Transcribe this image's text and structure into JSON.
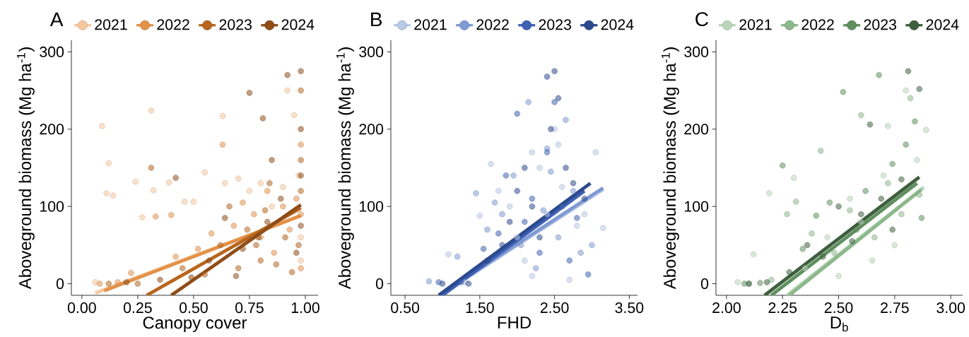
{
  "chart_data": [
    {
      "type": "scatter",
      "title": "A",
      "xlabel": "Canopy cover",
      "ylabel": "Aboveground biomass (Mg ha$^{-1}$)",
      "xlim": [
        -0.047,
        1.057
      ],
      "ylim": [
        -15,
        315
      ],
      "xticks": [
        {
          "value": 0,
          "label": "0.00"
        },
        {
          "value": 0.25,
          "label": "0.25"
        },
        {
          "value": 0.5,
          "label": "0.50"
        },
        {
          "value": 0.75,
          "label": "0.75"
        },
        {
          "value": 1,
          "label": "1.00"
        }
      ],
      "yticks": [
        0,
        100,
        200,
        300
      ],
      "legend": "top",
      "marker": "circle",
      "grid": false,
      "series": [
        {
          "name": "2021",
          "color": "#f5c79c",
          "x": [
            0.06,
            0.09,
            0.11,
            0.12,
            0.14,
            0.24,
            0.27,
            0.31,
            0.32,
            0.39,
            0.46,
            0.5,
            0.55,
            0.63,
            0.64,
            0.7,
            0.75,
            0.8,
            0.85,
            0.9,
            0.92,
            0.95,
            0.97,
            0.98,
            0.98
          ],
          "values": [
            2,
            204,
            117,
            156,
            114,
            132,
            86,
            224,
            121,
            131,
            106,
            106,
            144,
            217,
            130,
            136,
            120,
            130,
            100,
            125,
            250,
            218,
            140,
            60,
            30
          ]
        },
        {
          "name": "2022",
          "color": "#e3924a",
          "x": [
            0.08,
            0.16,
            0.22,
            0.33,
            0.4,
            0.42,
            0.52,
            0.58,
            0.63,
            0.68,
            0.72,
            0.77,
            0.8,
            0.83,
            0.86,
            0.9,
            0.93,
            0.96,
            0.98,
            0.98,
            0.98
          ],
          "values": [
            0,
            2,
            14,
            87,
            89,
            35,
            45,
            65,
            180,
            75,
            105,
            90,
            60,
            120,
            40,
            100,
            70,
            110,
            180,
            90,
            20
          ]
        },
        {
          "name": "2023",
          "color": "#b8661f",
          "x": [
            0.12,
            0.25,
            0.31,
            0.45,
            0.55,
            0.62,
            0.66,
            0.7,
            0.74,
            0.78,
            0.8,
            0.82,
            0.84,
            0.87,
            0.91,
            0.94,
            0.97,
            0.98,
            0.98,
            0.98
          ],
          "values": [
            0,
            0,
            150,
            20,
            12,
            50,
            100,
            20,
            70,
            50,
            30,
            95,
            130,
            25,
            60,
            15,
            50,
            120,
            160,
            250
          ]
        },
        {
          "name": "2024",
          "color": "#8f4d17",
          "x": [
            0.2,
            0.35,
            0.42,
            0.49,
            0.57,
            0.64,
            0.69,
            0.72,
            0.75,
            0.79,
            0.81,
            0.83,
            0.85,
            0.89,
            0.92,
            0.96,
            0.98,
            0.98,
            0.98,
            0.98
          ],
          "values": [
            2,
            5,
            137,
            8,
            30,
            85,
            10,
            45,
            247,
            60,
            214,
            80,
            160,
            110,
            270,
            40,
            75,
            140,
            200,
            275
          ]
        },
        {
          "type": "line",
          "marker": "none",
          "color": "#f5c79c",
          "x": [
            0.06,
            0.98
          ],
          "values": [
            -12,
            88
          ]
        },
        {
          "type": "line",
          "marker": "none",
          "color": "#e3924a",
          "x": [
            0.1,
            0.98
          ],
          "values": [
            -9,
            88
          ]
        },
        {
          "type": "line",
          "marker": "none",
          "color": "#b8661f",
          "x": [
            0.29,
            0.98
          ],
          "values": [
            -15,
            98
          ]
        },
        {
          "type": "line",
          "marker": "none",
          "color": "#8f4d17",
          "x": [
            0.4,
            0.98
          ],
          "values": [
            -15,
            102
          ]
        }
      ]
    },
    {
      "type": "scatter",
      "title": "B",
      "xlabel": "FHD",
      "ylabel": "Aboveground biomass (Mg ha$^{-1}$)",
      "xlim": [
        0.31,
        3.61
      ],
      "ylim": [
        -15,
        315
      ],
      "xticks": [
        {
          "value": 0.5,
          "label": "0.50"
        },
        {
          "value": 1.5,
          "label": "1.50"
        },
        {
          "value": 2.5,
          "label": "2.50"
        },
        {
          "value": 3.5,
          "label": "3.50"
        }
      ],
      "yticks": [
        0,
        100,
        200,
        300
      ],
      "legend": "top",
      "marker": "circle",
      "grid": false,
      "series": [
        {
          "name": "2021",
          "color": "#b9c8e6",
          "x": [
            1.08,
            1.3,
            1.5,
            1.65,
            1.75,
            1.9,
            2.0,
            2.1,
            2.2,
            2.3,
            2.4,
            2.5,
            2.6,
            2.7,
            2.8,
            2.9,
            3.05,
            3.15,
            2.55,
            2.2
          ],
          "values": [
            38,
            2,
            88,
            155,
            120,
            100,
            60,
            30,
            170,
            150,
            90,
            200,
            125,
            5,
            75,
            90,
            170,
            72,
            180,
            10
          ]
        },
        {
          "name": "2022",
          "color": "#7f9ad3",
          "x": [
            0.82,
            1.2,
            1.45,
            1.6,
            1.7,
            1.8,
            1.95,
            2.05,
            2.15,
            2.25,
            2.35,
            2.45,
            2.55,
            2.65,
            2.75,
            2.85,
            3.0,
            2.4
          ],
          "values": [
            3,
            35,
            117,
            70,
            105,
            90,
            140,
            50,
            235,
            20,
            95,
            145,
            60,
            212,
            120,
            40,
            50,
            175
          ]
        },
        {
          "name": "2023",
          "color": "#3f62b5",
          "x": [
            0.95,
            1.25,
            1.55,
            1.75,
            1.85,
            2.0,
            2.1,
            2.2,
            2.3,
            2.4,
            2.5,
            2.6,
            2.7,
            2.8,
            2.95
          ],
          "values": [
            2,
            2,
            45,
            65,
            140,
            220,
            80,
            110,
            40,
            170,
            235,
            100,
            30,
            85,
            12
          ]
        },
        {
          "name": "2024",
          "color": "#2d4a8f",
          "x": [
            1.0,
            1.35,
            1.6,
            1.8,
            1.9,
            2.0,
            2.1,
            2.2,
            2.3,
            2.4,
            2.45,
            2.5,
            2.55,
            2.65,
            2.75,
            2.9
          ],
          "values": [
            0,
            0,
            30,
            50,
            80,
            120,
            150,
            100,
            60,
            268,
            200,
            275,
            240,
            150,
            130,
            110
          ]
        },
        {
          "type": "line",
          "marker": "none",
          "color": "#b9c8e6",
          "x": [
            1.05,
            3.15
          ],
          "values": [
            -10,
            122
          ]
        },
        {
          "type": "line",
          "marker": "none",
          "color": "#7f9ad3",
          "x": [
            1.0,
            3.15
          ],
          "values": [
            -12,
            124
          ]
        },
        {
          "type": "line",
          "marker": "none",
          "color": "#3f62b5",
          "x": [
            1.0,
            2.9
          ],
          "values": [
            -15,
            120
          ]
        },
        {
          "type": "line",
          "marker": "none",
          "color": "#2d4a8f",
          "x": [
            0.95,
            2.98
          ],
          "values": [
            -15,
            130
          ]
        }
      ]
    },
    {
      "type": "scatter",
      "title": "C",
      "xlabel": "D$_{b}$",
      "ylabel": "Aboveground biomass (Mg ha$^{-1}$)",
      "xlim": [
        1.953,
        3.053
      ],
      "ylim": [
        -15,
        315
      ],
      "xticks": [
        {
          "value": 2,
          "label": "2.00"
        },
        {
          "value": 2.25,
          "label": "2.25"
        },
        {
          "value": 2.5,
          "label": "2.50"
        },
        {
          "value": 2.75,
          "label": "2.75"
        },
        {
          "value": 3,
          "label": "3.00"
        }
      ],
      "yticks": [
        0,
        100,
        200,
        300
      ],
      "legend": "top",
      "marker": "circle",
      "grid": false,
      "series": [
        {
          "name": "2021",
          "color": "#bcd6bc",
          "x": [
            2.05,
            2.12,
            2.19,
            2.3,
            2.35,
            2.45,
            2.5,
            2.55,
            2.6,
            2.65,
            2.7,
            2.75,
            2.8,
            2.85,
            2.89,
            2.72
          ],
          "values": [
            2,
            38,
            117,
            137,
            20,
            60,
            10,
            110,
            80,
            30,
            140,
            50,
            250,
            160,
            199,
            204
          ]
        },
        {
          "name": "2022",
          "color": "#8cb88c",
          "x": [
            2.1,
            2.2,
            2.27,
            2.31,
            2.38,
            2.42,
            2.48,
            2.55,
            2.6,
            2.66,
            2.72,
            2.78,
            2.82,
            2.86
          ],
          "values": [
            0,
            5,
            90,
            106,
            65,
            172,
            40,
            95,
            218,
            60,
            130,
            90,
            240,
            115
          ]
        },
        {
          "name": "2023",
          "color": "#5f8f5f",
          "x": [
            2.08,
            2.15,
            2.25,
            2.34,
            2.4,
            2.46,
            2.52,
            2.58,
            2.62,
            2.68,
            2.74,
            2.8,
            2.84,
            2.87
          ],
          "values": [
            0,
            1,
            153,
            45,
            88,
            105,
            248,
            70,
            120,
            270,
            155,
            180,
            210,
            85
          ]
        },
        {
          "name": "2024",
          "color": "#3e5f3e",
          "x": [
            2.1,
            2.18,
            2.28,
            2.36,
            2.43,
            2.5,
            2.56,
            2.6,
            2.64,
            2.69,
            2.74,
            2.78,
            2.81,
            2.86
          ],
          "values": [
            0,
            2,
            15,
            50,
            35,
            100,
            55,
            90,
            206,
            110,
            70,
            135,
            275,
            252
          ]
        },
        {
          "type": "line",
          "marker": "none",
          "color": "#bcd6bc",
          "x": [
            2.27,
            2.88
          ],
          "values": [
            -15,
            125
          ]
        },
        {
          "type": "line",
          "marker": "none",
          "color": "#8cb88c",
          "x": [
            2.28,
            2.87
          ],
          "values": [
            -15,
            122
          ]
        },
        {
          "type": "line",
          "marker": "none",
          "color": "#5f8f5f",
          "x": [
            2.2,
            2.85
          ],
          "values": [
            -15,
            130
          ]
        },
        {
          "type": "line",
          "marker": "none",
          "color": "#3e5f3e",
          "x": [
            2.17,
            2.86
          ],
          "values": [
            -15,
            138
          ]
        }
      ]
    }
  ]
}
